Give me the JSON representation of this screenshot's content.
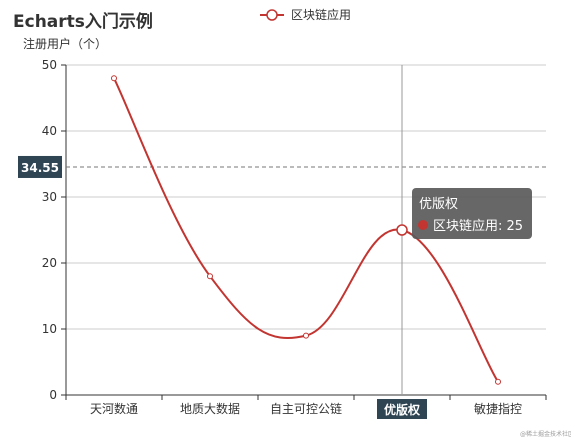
{
  "title": "Echarts入门示例",
  "watermark": "@稀土掘金技术社区",
  "colors": {
    "series": "#c23531",
    "axis": "#333333",
    "grid": "#cccccc",
    "pointer_label_bg": "#2f4554",
    "tooltip_bg": "#5a5a5a"
  },
  "chart_data": {
    "type": "line",
    "smooth": true,
    "title": "Echarts入门示例",
    "ylabel": "注册用户（个）",
    "xlabel": "",
    "categories": [
      "天河数通",
      "地质大数据",
      "自主可控公链",
      "优版权",
      "敏捷指控"
    ],
    "series": [
      {
        "name": "区块链应用",
        "values": [
          48,
          18,
          9,
          25,
          2
        ]
      }
    ],
    "ylim": [
      0,
      50
    ],
    "yticks": [
      0,
      10,
      20,
      30,
      40,
      50
    ],
    "grid": true,
    "legend": "top-center",
    "axis_pointer": {
      "y_value": "34.55",
      "category": "优版权"
    },
    "tooltip": {
      "title": "优版权",
      "series_label": "区块链应用: 25"
    }
  }
}
